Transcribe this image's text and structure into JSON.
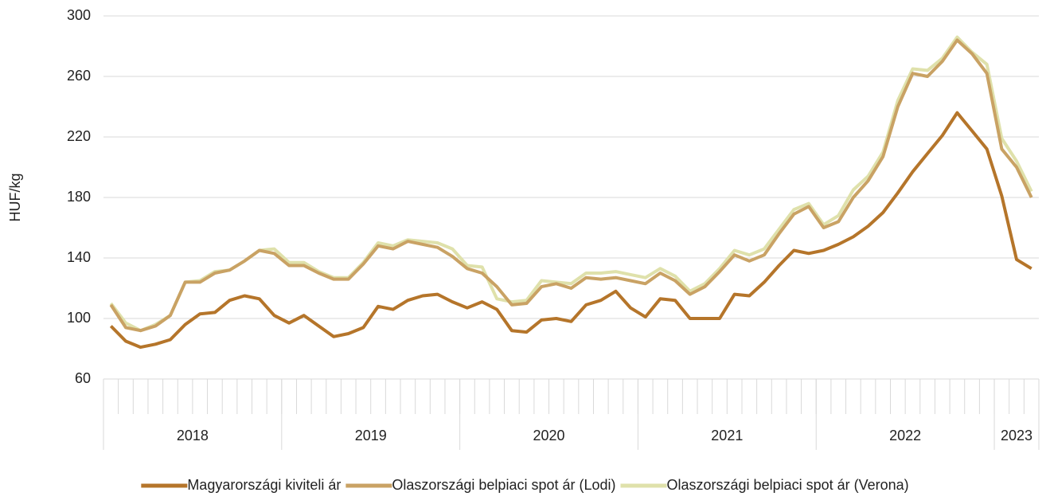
{
  "chart_data": {
    "type": "line",
    "y_label": "HUF/kg",
    "categories": [
      null,
      null,
      null,
      null,
      null,
      null,
      null,
      null,
      null,
      null,
      null,
      null,
      null,
      null,
      null,
      null,
      null,
      null,
      null,
      null,
      null,
      null,
      null,
      null,
      null,
      null,
      null,
      null,
      null,
      null,
      null,
      null,
      null,
      null,
      null,
      null,
      null,
      null,
      null,
      null,
      null,
      null,
      null,
      null,
      null,
      null,
      null,
      null,
      null,
      null,
      null,
      null,
      null,
      null,
      null,
      null,
      null,
      null,
      null,
      null,
      null,
      null,
      null
    ],
    "groups": [
      "2018",
      "2019",
      "2020",
      "2021",
      "2022",
      "2023"
    ],
    "group_sizes": [
      12,
      12,
      12,
      12,
      12,
      3
    ],
    "ylim": [
      60,
      300
    ],
    "yticks": [
      60,
      100,
      140,
      180,
      220,
      260,
      300
    ],
    "grid": true,
    "legend": "bottom",
    "series": [
      {
        "name": "Magyarországi kiviteli ár",
        "color": "#b5752a",
        "values": [
          95,
          85,
          81,
          83,
          86,
          96,
          103,
          104,
          112,
          115,
          113,
          102,
          97,
          102,
          95,
          88,
          90,
          94,
          108,
          106,
          112,
          115,
          116,
          111,
          107,
          111,
          106,
          92,
          91,
          99,
          100,
          98,
          109,
          112,
          118,
          107,
          101,
          113,
          112,
          100,
          100,
          100,
          116,
          115,
          124,
          135,
          145,
          143,
          145,
          149,
          154,
          161,
          170,
          183,
          197,
          209,
          221,
          236,
          224,
          212,
          181,
          139,
          133
        ]
      },
      {
        "name": "Olaszországi belpiaci spot ár (Lodi)",
        "color": "#c9a264",
        "values": [
          109,
          94,
          92,
          95,
          102,
          124,
          124,
          130,
          132,
          138,
          145,
          143,
          135,
          135,
          130,
          126,
          126,
          136,
          148,
          146,
          151,
          149,
          147,
          141,
          133,
          130,
          121,
          109,
          110,
          121,
          123,
          120,
          127,
          126,
          127,
          125,
          123,
          130,
          125,
          116,
          121,
          131,
          142,
          138,
          142,
          156,
          169,
          174,
          160,
          164,
          180,
          191,
          207,
          240,
          262,
          260,
          270,
          284,
          275,
          262,
          212,
          200,
          180
        ]
      },
      {
        "name": "Olaszországi belpiaci spot ár (Verona)",
        "color": "#dfe1ab",
        "values": [
          110,
          97,
          92,
          96,
          102,
          124,
          125,
          131,
          132,
          138,
          145,
          146,
          137,
          137,
          131,
          127,
          127,
          137,
          150,
          148,
          152,
          151,
          150,
          146,
          135,
          134,
          113,
          111,
          112,
          125,
          124,
          123,
          130,
          130,
          131,
          129,
          127,
          133,
          128,
          118,
          123,
          133,
          145,
          142,
          146,
          159,
          172,
          176,
          162,
          168,
          185,
          194,
          210,
          244,
          265,
          264,
          272,
          286,
          276,
          268,
          219,
          204,
          184
        ]
      }
    ]
  }
}
